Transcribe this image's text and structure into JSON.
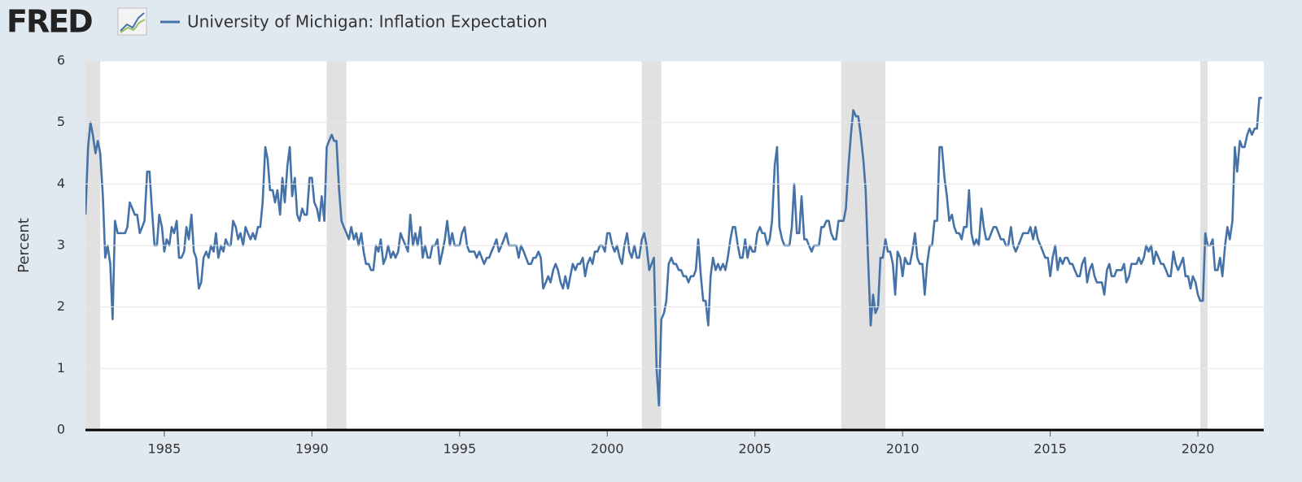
{
  "chart_data": {
    "type": "line",
    "brand": "FRED",
    "ylabel": "Percent",
    "xlim": [
      1982.33,
      2022.23
    ],
    "ylim": [
      0,
      6
    ],
    "xticks": [
      1985,
      1990,
      1995,
      2000,
      2005,
      2010,
      2015,
      2020
    ],
    "yticks": [
      0,
      1,
      2,
      3,
      4,
      5,
      6
    ],
    "grid": true,
    "recessions": [
      [
        1981.58,
        1982.83
      ],
      [
        1990.5,
        1991.17
      ],
      [
        2001.17,
        2001.83
      ],
      [
        2007.92,
        2009.42
      ],
      [
        2020.08,
        2020.33
      ]
    ],
    "recession_color": "#e1e1e1",
    "x": [
      1982.33,
      1982.42,
      1982.5,
      1982.58,
      1982.67,
      1982.75,
      1982.83,
      1982.92,
      1983,
      1983.08,
      1983.17,
      1983.25,
      1983.33,
      1983.42,
      1983.5,
      1983.58,
      1983.67,
      1983.75,
      1983.83,
      1983.92,
      1984,
      1984.08,
      1984.17,
      1984.25,
      1984.33,
      1984.42,
      1984.5,
      1984.58,
      1984.67,
      1984.75,
      1984.83,
      1984.92,
      1985,
      1985.08,
      1985.17,
      1985.25,
      1985.33,
      1985.42,
      1985.5,
      1985.58,
      1985.67,
      1985.75,
      1985.83,
      1985.92,
      1986,
      1986.08,
      1986.17,
      1986.25,
      1986.33,
      1986.42,
      1986.5,
      1986.58,
      1986.67,
      1986.75,
      1986.83,
      1986.92,
      1987,
      1987.08,
      1987.17,
      1987.25,
      1987.33,
      1987.42,
      1987.5,
      1987.58,
      1987.67,
      1987.75,
      1987.83,
      1987.92,
      1988,
      1988.08,
      1988.17,
      1988.25,
      1988.33,
      1988.42,
      1988.5,
      1988.58,
      1988.67,
      1988.75,
      1988.83,
      1988.92,
      1989,
      1989.08,
      1989.17,
      1989.25,
      1989.33,
      1989.42,
      1989.5,
      1989.58,
      1989.67,
      1989.75,
      1989.83,
      1989.92,
      1990,
      1990.08,
      1990.17,
      1990.25,
      1990.33,
      1990.42,
      1990.5,
      1990.58,
      1990.67,
      1990.75,
      1990.83,
      1990.92,
      1991,
      1991.08,
      1991.17,
      1991.25,
      1991.33,
      1991.42,
      1991.5,
      1991.58,
      1991.67,
      1991.75,
      1991.83,
      1991.92,
      1992,
      1992.08,
      1992.17,
      1992.25,
      1992.33,
      1992.42,
      1992.5,
      1992.58,
      1992.67,
      1992.75,
      1992.83,
      1992.92,
      1993,
      1993.08,
      1993.17,
      1993.25,
      1993.33,
      1993.42,
      1993.5,
      1993.58,
      1993.67,
      1993.75,
      1993.83,
      1993.92,
      1994,
      1994.08,
      1994.17,
      1994.25,
      1994.33,
      1994.42,
      1994.5,
      1994.58,
      1994.67,
      1994.75,
      1994.83,
      1994.92,
      1995,
      1995.08,
      1995.17,
      1995.25,
      1995.33,
      1995.42,
      1995.5,
      1995.58,
      1995.67,
      1995.75,
      1995.83,
      1995.92,
      1996,
      1996.08,
      1996.17,
      1996.25,
      1996.33,
      1996.42,
      1996.5,
      1996.58,
      1996.67,
      1996.75,
      1996.83,
      1996.92,
      1997,
      1997.08,
      1997.17,
      1997.25,
      1997.33,
      1997.42,
      1997.5,
      1997.58,
      1997.67,
      1997.75,
      1997.83,
      1997.92,
      1998,
      1998.08,
      1998.17,
      1998.25,
      1998.33,
      1998.42,
      1998.5,
      1998.58,
      1998.67,
      1998.75,
      1998.83,
      1998.92,
      1999,
      1999.08,
      1999.17,
      1999.25,
      1999.33,
      1999.42,
      1999.5,
      1999.58,
      1999.67,
      1999.75,
      1999.83,
      1999.92,
      2000,
      2000.08,
      2000.17,
      2000.25,
      2000.33,
      2000.42,
      2000.5,
      2000.58,
      2000.67,
      2000.75,
      2000.83,
      2000.92,
      2001,
      2001.08,
      2001.17,
      2001.25,
      2001.33,
      2001.42,
      2001.5,
      2001.58,
      2001.67,
      2001.75,
      2001.83,
      2001.92,
      2002,
      2002.08,
      2002.17,
      2002.25,
      2002.33,
      2002.42,
      2002.5,
      2002.58,
      2002.67,
      2002.75,
      2002.83,
      2002.92,
      2003,
      2003.08,
      2003.17,
      2003.25,
      2003.33,
      2003.42,
      2003.5,
      2003.58,
      2003.67,
      2003.75,
      2003.83,
      2003.92,
      2004,
      2004.08,
      2004.17,
      2004.25,
      2004.33,
      2004.42,
      2004.5,
      2004.58,
      2004.67,
      2004.75,
      2004.83,
      2004.92,
      2005,
      2005.08,
      2005.17,
      2005.25,
      2005.33,
      2005.42,
      2005.5,
      2005.58,
      2005.67,
      2005.75,
      2005.83,
      2005.92,
      2006,
      2006.08,
      2006.17,
      2006.25,
      2006.33,
      2006.42,
      2006.5,
      2006.58,
      2006.67,
      2006.75,
      2006.83,
      2006.92,
      2007,
      2007.08,
      2007.17,
      2007.25,
      2007.33,
      2007.42,
      2007.5,
      2007.58,
      2007.67,
      2007.75,
      2007.83,
      2007.92,
      2008,
      2008.08,
      2008.17,
      2008.25,
      2008.33,
      2008.42,
      2008.5,
      2008.58,
      2008.67,
      2008.75,
      2008.83,
      2008.92,
      2009,
      2009.08,
      2009.17,
      2009.25,
      2009.33,
      2009.42,
      2009.5,
      2009.58,
      2009.67,
      2009.75,
      2009.83,
      2009.92,
      2010,
      2010.08,
      2010.17,
      2010.25,
      2010.33,
      2010.42,
      2010.5,
      2010.58,
      2010.67,
      2010.75,
      2010.83,
      2010.92,
      2011,
      2011.08,
      2011.17,
      2011.25,
      2011.33,
      2011.42,
      2011.5,
      2011.58,
      2011.67,
      2011.75,
      2011.83,
      2011.92,
      2012,
      2012.08,
      2012.17,
      2012.25,
      2012.33,
      2012.42,
      2012.5,
      2012.58,
      2012.67,
      2012.75,
      2012.83,
      2012.92,
      2013,
      2013.08,
      2013.17,
      2013.25,
      2013.33,
      2013.42,
      2013.5,
      2013.58,
      2013.67,
      2013.75,
      2013.83,
      2013.92,
      2014,
      2014.08,
      2014.17,
      2014.25,
      2014.33,
      2014.42,
      2014.5,
      2014.58,
      2014.67,
      2014.75,
      2014.83,
      2014.92,
      2015,
      2015.08,
      2015.17,
      2015.25,
      2015.33,
      2015.42,
      2015.5,
      2015.58,
      2015.67,
      2015.75,
      2015.83,
      2015.92,
      2016,
      2016.08,
      2016.17,
      2016.25,
      2016.33,
      2016.42,
      2016.5,
      2016.58,
      2016.67,
      2016.75,
      2016.83,
      2016.92,
      2017,
      2017.08,
      2017.17,
      2017.25,
      2017.33,
      2017.42,
      2017.5,
      2017.58,
      2017.67,
      2017.75,
      2017.83,
      2017.92,
      2018,
      2018.08,
      2018.17,
      2018.25,
      2018.33,
      2018.42,
      2018.5,
      2018.58,
      2018.67,
      2018.75,
      2018.83,
      2018.92,
      2019,
      2019.08,
      2019.17,
      2019.25,
      2019.33,
      2019.42,
      2019.5,
      2019.58,
      2019.67,
      2019.75,
      2019.83,
      2019.92,
      2020,
      2020.08,
      2020.17,
      2020.25,
      2020.33,
      2020.42,
      2020.5,
      2020.58,
      2020.67,
      2020.75,
      2020.83,
      2020.92,
      2021,
      2021.08,
      2021.17,
      2021.25,
      2021.33,
      2021.42,
      2021.5,
      2021.58,
      2021.67,
      2021.75,
      2021.83,
      2021.92,
      2022,
      2022.08,
      2022.17
    ],
    "series": [
      {
        "name": "University of Michigan: Inflation Expectation",
        "color": "#4572a7",
        "values": [
          3.5,
          4.6,
          5.0,
          4.8,
          4.5,
          4.7,
          4.5,
          3.8,
          2.8,
          3.0,
          2.7,
          1.8,
          3.4,
          3.2,
          3.2,
          3.2,
          3.2,
          3.3,
          3.7,
          3.6,
          3.5,
          3.5,
          3.2,
          3.3,
          3.4,
          4.2,
          4.2,
          3.6,
          3.0,
          3.0,
          3.5,
          3.3,
          2.9,
          3.1,
          3.0,
          3.3,
          3.2,
          3.4,
          2.8,
          2.8,
          2.9,
          3.3,
          3.1,
          3.5,
          2.9,
          2.8,
          2.3,
          2.4,
          2.8,
          2.9,
          2.8,
          3.0,
          2.9,
          3.2,
          2.8,
          3.0,
          2.9,
          3.1,
          3.0,
          3.0,
          3.4,
          3.3,
          3.1,
          3.2,
          3.0,
          3.3,
          3.2,
          3.1,
          3.2,
          3.1,
          3.3,
          3.3,
          3.7,
          4.6,
          4.4,
          3.9,
          3.9,
          3.7,
          3.9,
          3.5,
          4.1,
          3.7,
          4.3,
          4.6,
          3.8,
          4.1,
          3.5,
          3.4,
          3.6,
          3.5,
          3.5,
          4.1,
          4.1,
          3.7,
          3.6,
          3.4,
          3.8,
          3.4,
          4.6,
          4.7,
          4.8,
          4.7,
          4.7,
          3.9,
          3.4,
          3.3,
          3.2,
          3.1,
          3.3,
          3.1,
          3.2,
          3.0,
          3.2,
          2.9,
          2.7,
          2.7,
          2.6,
          2.6,
          3.0,
          2.9,
          3.1,
          2.7,
          2.8,
          3.0,
          2.8,
          2.9,
          2.8,
          2.9,
          3.2,
          3.1,
          3.0,
          2.9,
          3.5,
          3.0,
          3.2,
          3.0,
          3.3,
          2.8,
          3.0,
          2.8,
          2.8,
          3.0,
          3.0,
          3.1,
          2.7,
          2.9,
          3.1,
          3.4,
          3.0,
          3.2,
          3.0,
          3.0,
          3.0,
          3.2,
          3.3,
          3.0,
          2.9,
          2.9,
          2.9,
          2.8,
          2.9,
          2.8,
          2.7,
          2.8,
          2.8,
          2.9,
          3.0,
          3.1,
          2.9,
          3.0,
          3.1,
          3.2,
          3.0,
          3.0,
          3.0,
          3.0,
          2.8,
          3.0,
          2.9,
          2.8,
          2.7,
          2.7,
          2.8,
          2.8,
          2.9,
          2.8,
          2.3,
          2.4,
          2.5,
          2.4,
          2.6,
          2.7,
          2.6,
          2.4,
          2.3,
          2.5,
          2.3,
          2.5,
          2.7,
          2.6,
          2.7,
          2.7,
          2.8,
          2.5,
          2.7,
          2.8,
          2.7,
          2.9,
          2.9,
          3.0,
          3.0,
          2.9,
          3.2,
          3.2,
          3.0,
          2.9,
          3.0,
          2.8,
          2.7,
          3.0,
          3.2,
          2.9,
          2.8,
          3.0,
          2.8,
          2.8,
          3.1,
          3.2,
          3.0,
          2.6,
          2.7,
          2.8,
          1.0,
          0.4,
          1.8,
          1.9,
          2.1,
          2.7,
          2.8,
          2.7,
          2.7,
          2.6,
          2.6,
          2.5,
          2.5,
          2.4,
          2.5,
          2.5,
          2.6,
          3.1,
          2.5,
          2.1,
          2.1,
          1.7,
          2.5,
          2.8,
          2.6,
          2.7,
          2.6,
          2.7,
          2.6,
          2.8,
          3.1,
          3.3,
          3.3,
          3.0,
          2.8,
          2.8,
          3.1,
          2.8,
          3.0,
          2.9,
          2.9,
          3.2,
          3.3,
          3.2,
          3.2,
          3.0,
          3.1,
          3.4,
          4.3,
          4.6,
          3.3,
          3.1,
          3.0,
          3.0,
          3.0,
          3.3,
          4.0,
          3.2,
          3.2,
          3.8,
          3.1,
          3.1,
          3.0,
          2.9,
          3.0,
          3.0,
          3.0,
          3.3,
          3.3,
          3.4,
          3.4,
          3.2,
          3.1,
          3.1,
          3.4,
          3.4,
          3.4,
          3.6,
          4.3,
          4.8,
          5.2,
          5.1,
          5.1,
          4.8,
          4.4,
          3.9,
          2.8,
          1.7,
          2.2,
          1.9,
          2.0,
          2.8,
          2.8,
          3.1,
          2.9,
          2.9,
          2.7,
          2.2,
          2.9,
          2.8,
          2.5,
          2.8,
          2.7,
          2.7,
          2.9,
          3.2,
          2.8,
          2.7,
          2.7,
          2.2,
          2.7,
          3.0,
          3.0,
          3.4,
          3.4,
          4.6,
          4.6,
          4.1,
          3.8,
          3.4,
          3.5,
          3.3,
          3.2,
          3.2,
          3.1,
          3.3,
          3.3,
          3.9,
          3.2,
          3.0,
          3.1,
          3.0,
          3.6,
          3.3,
          3.1,
          3.1,
          3.2,
          3.3,
          3.3,
          3.2,
          3.1,
          3.1,
          3.0,
          3.0,
          3.3,
          3.0,
          2.9,
          3.0,
          3.1,
          3.2,
          3.2,
          3.2,
          3.3,
          3.1,
          3.3,
          3.1,
          3.0,
          2.9,
          2.8,
          2.8,
          2.5,
          2.8,
          3.0,
          2.6,
          2.8,
          2.7,
          2.8,
          2.8,
          2.7,
          2.7,
          2.6,
          2.5,
          2.5,
          2.7,
          2.8,
          2.4,
          2.6,
          2.7,
          2.5,
          2.4,
          2.4,
          2.4,
          2.2,
          2.6,
          2.7,
          2.5,
          2.5,
          2.6,
          2.6,
          2.6,
          2.7,
          2.4,
          2.5,
          2.7,
          2.7,
          2.7,
          2.8,
          2.7,
          2.8,
          3.0,
          2.9,
          3.0,
          2.7,
          2.9,
          2.8,
          2.7,
          2.7,
          2.6,
          2.5,
          2.5,
          2.9,
          2.7,
          2.6,
          2.7,
          2.8,
          2.5,
          2.5,
          2.3,
          2.5,
          2.4,
          2.2,
          2.1,
          2.1,
          3.2,
          3.0,
          3.0,
          3.1,
          2.6,
          2.6,
          2.8,
          2.5,
          3.0,
          3.3,
          3.1,
          3.4,
          4.6,
          4.2,
          4.7,
          4.6,
          4.6,
          4.8,
          4.9,
          4.8,
          4.9,
          4.9,
          5.4,
          5.4
        ]
      }
    ]
  }
}
